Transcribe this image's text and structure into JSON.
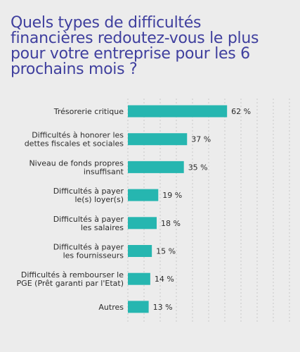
{
  "title_lines": [
    "Quels types de difficultés",
    "financières redoutez-vous le plus",
    "pour votre entreprise pour les 6",
    "prochains mois ?"
  ],
  "colors": {
    "bar": "#26b6b0",
    "title": "#3f3f9e",
    "background": "#ececec"
  },
  "chart_data": {
    "type": "bar",
    "orientation": "horizontal",
    "categories": [
      [
        "Trésorerie critique"
      ],
      [
        "Difficultés à honorer les",
        "dettes fiscales et sociales"
      ],
      [
        "Niveau de fonds propres",
        "insuffisant"
      ],
      [
        "Difficultés à payer",
        "le(s) loyer(s)"
      ],
      [
        "Difficultés à payer",
        "les salaires"
      ],
      [
        "Difficultés à payer",
        "les fournisseurs"
      ],
      [
        "Difficultés à rembourser le",
        "PGE (Prêt garanti par l'Etat)"
      ],
      [
        "Autres"
      ]
    ],
    "values": [
      62,
      37,
      35,
      19,
      18,
      15,
      14,
      13
    ],
    "value_labels": [
      "62 %",
      "37 %",
      "35 %",
      "19 %",
      "18 %",
      "15 %",
      "14 %",
      "13 %"
    ],
    "xlim": [
      0,
      100
    ],
    "grid": true,
    "legend": "none"
  }
}
